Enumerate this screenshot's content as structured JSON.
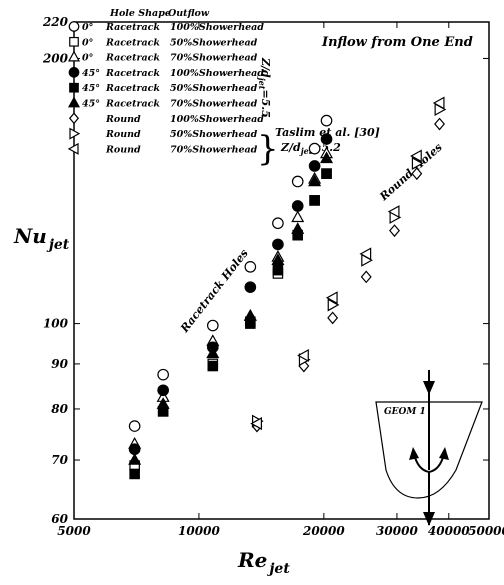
{
  "chart_data": {
    "type": "scatter",
    "title": "Inflow from One End",
    "xlabel": "Re",
    "xlabel_sub": "jet",
    "ylabel": "Nu",
    "ylabel_sub": "jet",
    "x_scale": "log",
    "y_scale": "log",
    "xlim": [
      5000,
      50000
    ],
    "ylim": [
      60,
      220
    ],
    "x_ticks": [
      5000,
      10000,
      20000,
      30000,
      40000,
      50000
    ],
    "x_tick_labels": [
      "5000",
      "10000",
      "20000",
      "30000",
      "40000",
      "50000"
    ],
    "y_ticks": [
      60,
      70,
      80,
      90,
      100,
      200,
      220
    ],
    "y_tick_labels": [
      "60",
      "70",
      "80",
      "90",
      "100",
      "200",
      "220"
    ],
    "legend_header": {
      "shape": "Hole Shape",
      "outflow": "Outflow"
    },
    "legend_note": "Z/d",
    "legend_note_sub": "jet",
    "legend_note_value": "=5.5",
    "reference_label": "Taslim et al. [30]",
    "reference_note": "Z/d",
    "reference_note_sub": "jet",
    "reference_note_value": "=5.2",
    "annotations": [
      "Racetrack Holes",
      "Round Holes"
    ],
    "geometry_label": "GEOM 1",
    "series": [
      {
        "angle": "0°",
        "shape": "Racetrack",
        "outflow": "100%Showerhead",
        "marker": "circle-open",
        "x": [
          7000,
          8200,
          10800,
          13300,
          15500,
          17300,
          19000,
          20300
        ],
        "y": [
          76.5,
          87.5,
          99.5,
          116,
          130,
          145,
          158,
          170
        ]
      },
      {
        "angle": "0°",
        "shape": "Racetrack",
        "outflow": "50%Showerhead",
        "marker": "square-open",
        "x": [
          7000,
          8200,
          10800,
          13300,
          15500,
          17300,
          19000,
          20300
        ],
        "y": [
          69,
          79.5,
          90,
          100.5,
          114,
          126,
          138,
          148
        ]
      },
      {
        "angle": "0°",
        "shape": "Racetrack",
        "outflow": "70%Showerhead",
        "marker": "triangle-open",
        "x": [
          7000,
          8200,
          10800,
          13300,
          15500,
          17300,
          19000,
          20300
        ],
        "y": [
          73,
          82.5,
          95.5,
          102,
          119,
          132,
          146,
          156
        ]
      },
      {
        "angle": "45°",
        "shape": "Racetrack",
        "outflow": "100%Showerhead",
        "marker": "circle-filled",
        "x": [
          7000,
          8200,
          10800,
          13300,
          15500,
          17300,
          19000,
          20300
        ],
        "y": [
          72,
          84,
          94,
          110,
          123,
          136,
          151,
          162
        ]
      },
      {
        "angle": "45°",
        "shape": "Racetrack",
        "outflow": "50%Showerhead",
        "marker": "square-filled",
        "x": [
          7000,
          8200,
          10800,
          13300,
          15500,
          17300,
          19000,
          20300
        ],
        "y": [
          67.5,
          79.5,
          89.5,
          100,
          115,
          126,
          138,
          148
        ]
      },
      {
        "angle": "45°",
        "shape": "Racetrack",
        "outflow": "70%Showerhead",
        "marker": "triangle-filled",
        "x": [
          7000,
          8200,
          10800,
          13300,
          15500,
          17300,
          19000,
          20300
        ],
        "y": [
          70,
          81,
          92.5,
          102,
          118,
          128,
          145,
          154
        ]
      },
      {
        "angle": "",
        "shape": "Round",
        "outflow": "100%Showerhead",
        "marker": "diamond-open",
        "x": [
          13800,
          17900,
          21000,
          25300,
          29600,
          33500,
          38000
        ],
        "y": [
          76.5,
          89.5,
          101.5,
          113,
          127.5,
          148,
          168.5
        ]
      },
      {
        "angle": "",
        "shape": "Round",
        "outflow": "50%Showerhead",
        "marker": "triangle-right-open",
        "x": [
          13800,
          17900,
          21000,
          25300,
          29600,
          33500,
          38000
        ],
        "y": [
          77.5,
          91,
          105,
          118,
          132,
          152,
          175
        ]
      },
      {
        "angle": "",
        "shape": "Round",
        "outflow": "70%Showerhead",
        "marker": "triangle-left-open",
        "x": [
          13800,
          17900,
          21000,
          25300,
          29600,
          33500,
          38000
        ],
        "y": [
          77,
          92,
          107,
          120,
          134,
          155,
          178
        ]
      }
    ]
  }
}
